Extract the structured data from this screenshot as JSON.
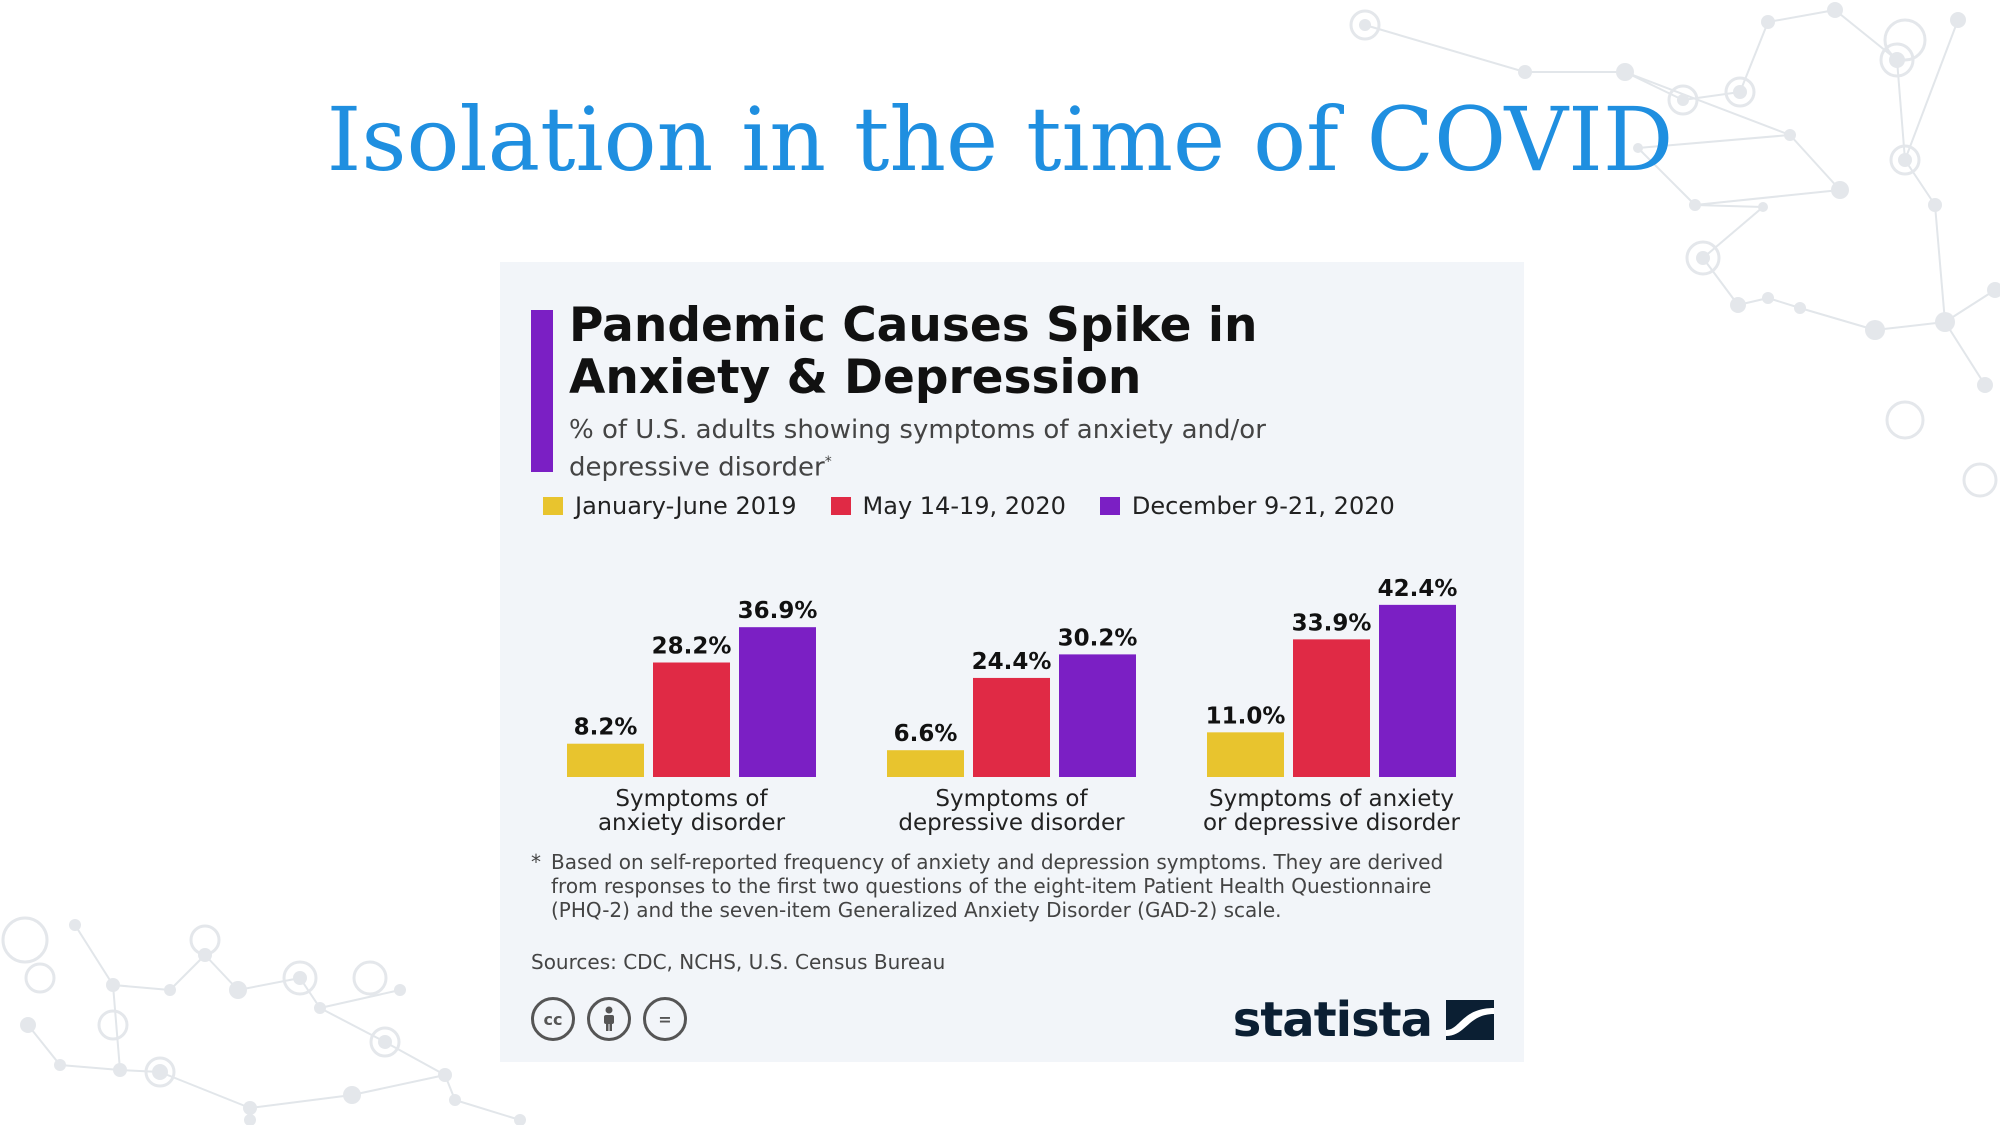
{
  "slide": {
    "title": "Isolation in the time of COVID"
  },
  "infographic": {
    "title": "Pandemic Causes Spike in Anxiety & Depression",
    "subtitle": "% of U.S. adults showing symptoms of anxiety and/or depressive disorder",
    "subtitle_marker": "*",
    "footnote_marker": "*",
    "footnote": "Based on self-reported frequency of anxiety and depression symptoms. They are derived from responses to the first two questions of the eight-item Patient Health Questionnaire (PHQ-2) and the seven-item Generalized Anxiety Disorder (GAD-2) scale.",
    "sources": "Sources: CDC, NCHS, U.S. Census Bureau",
    "license_icons": [
      "cc-icon",
      "attribution-icon",
      "no-derivatives-icon"
    ],
    "license_glyphs": [
      "cc",
      "="
    ],
    "brand": "statista",
    "accent_color": "#7b1fc4"
  },
  "chart_data": {
    "type": "bar",
    "title": "Pandemic Causes Spike in Anxiety & Depression",
    "ylabel": "% of U.S. adults",
    "ylim": [
      0,
      45
    ],
    "grid": false,
    "legend_position": "top-left",
    "categories": [
      [
        "Symptoms of",
        "anxiety disorder"
      ],
      [
        "Symptoms of",
        "depressive disorder"
      ],
      [
        "Symptoms of anxiety",
        "or depressive disorder"
      ]
    ],
    "series": [
      {
        "name": "January-June 2019",
        "color": "#e8c42e",
        "values": [
          8.2,
          6.6,
          11.0
        ],
        "labels": [
          "8.2%",
          "6.6%",
          "11.0%"
        ]
      },
      {
        "name": "May 14-19, 2020",
        "color": "#e02a45",
        "values": [
          28.2,
          24.4,
          33.9
        ],
        "labels": [
          "28.2%",
          "24.4%",
          "33.9%"
        ]
      },
      {
        "name": "December 9-21, 2020",
        "color": "#7b1fc4",
        "values": [
          36.9,
          30.2,
          42.4
        ],
        "labels": [
          "36.9%",
          "30.2%",
          "42.4%"
        ]
      }
    ]
  }
}
